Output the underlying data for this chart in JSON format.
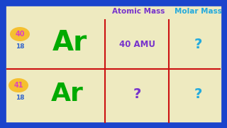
{
  "bg_color": "#eeeac0",
  "border_color": "#1a44cc",
  "border_lw": 7,
  "grid_color": "#cc1111",
  "grid_lw": 1.5,
  "header_atomic": "Atomic Mass",
  "header_molar": "Molar Mass",
  "header_atomic_color": "#7733cc",
  "header_molar_color": "#22aadd",
  "header_fontsize": 7.5,
  "ar_color": "#00aa00",
  "ar_fontsize_1": 28,
  "ar_fontsize_2": 26,
  "mass_number_1": "40",
  "mass_number_2": "41",
  "atomic_number": "18",
  "mass_num_color": "#dd44bb",
  "atomic_num_color": "#3366cc",
  "badge_color": "#f5c030",
  "badge_fontsize": 7,
  "cell_atomic_mass_1": "40 AMU",
  "cell_atomic_mass_1_color": "#7733cc",
  "cell_atomic_mass_1_fontsize": 8.5,
  "cell_q_color_purple": "#7733cc",
  "cell_q_color_blue": "#22aadd",
  "cell_fontsize_q": 14,
  "atomic_num_fontsize": 6.5,
  "figw": 3.2,
  "figh": 1.8,
  "dpi": 100
}
